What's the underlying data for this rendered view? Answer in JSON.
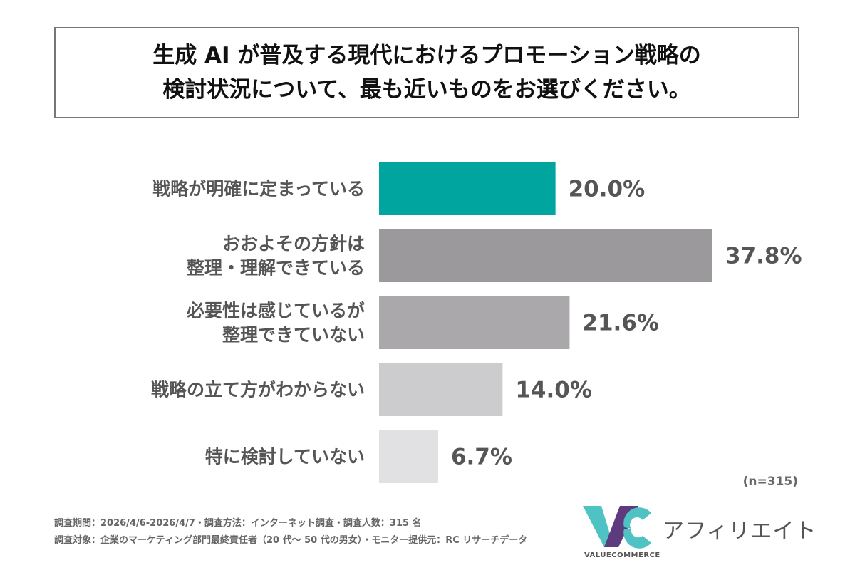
{
  "chart_data": {
    "type": "bar",
    "orientation": "horizontal",
    "title": [
      "生成 AI が普及する現代におけるプロモーション戦略の",
      "検討状況について、最も近いものをお選びください。"
    ],
    "categories": [
      [
        "戦略が明確に定まっている"
      ],
      [
        "おおよその方針は",
        "整理・理解できている"
      ],
      [
        "必要性は感じているが",
        "整理できていない"
      ],
      [
        "戦略の立て方がわからない"
      ],
      [
        "特に検討していない"
      ]
    ],
    "values": [
      20.0,
      37.8,
      21.6,
      14.0,
      6.7
    ],
    "value_labels": [
      "20.0%",
      "37.8%",
      "21.6%",
      "14.0%",
      "6.7%"
    ],
    "bar_colors": [
      "#00a59f",
      "#9b999c",
      "#aaa8ab",
      "#cccbcd",
      "#e1e0e2"
    ],
    "xlim": [
      0,
      40
    ],
    "grid": false
  },
  "note": "(n=315)",
  "footnotes": [
    "調査期間：2026/4/6-2026/4/7・調査方法：インターネット調査・調査人数：315 名",
    "調査対象：企業のマーケティング部門最終責任者（20 代〜 50 代の男女）・モニター提供元：RC リサーチデータ"
  ],
  "logo": {
    "text": "アフィリエイト",
    "subtext": "VALUECOMMERCE",
    "icon": "valuecommerce-logo-icon",
    "colors": [
      "#4fc3c4",
      "#5e3a7e"
    ]
  }
}
